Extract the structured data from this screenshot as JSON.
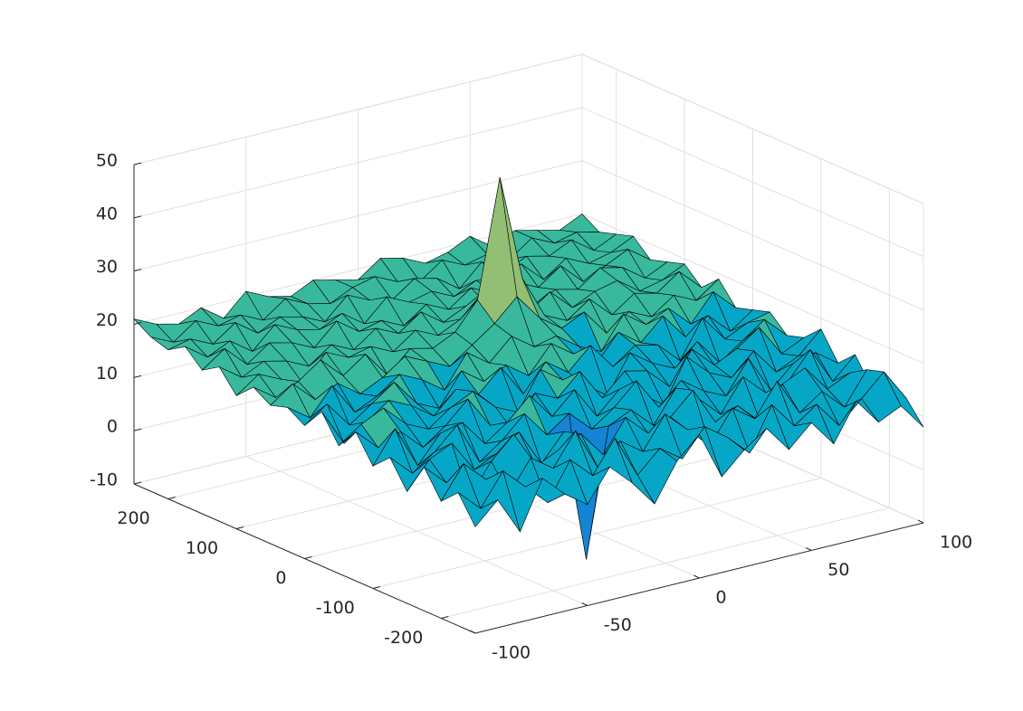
{
  "chart_data": {
    "type": "surface",
    "x": [
      -100,
      -90,
      -80,
      -70,
      -60,
      -50,
      -40,
      -30,
      -20,
      -10,
      0,
      10,
      20,
      30,
      40,
      50,
      60,
      70,
      80,
      90,
      100
    ],
    "y": [
      -250,
      -225,
      -200,
      -175,
      -150,
      -125,
      -100,
      -75,
      -50,
      -25,
      0,
      25,
      50,
      75,
      100,
      125,
      150,
      175,
      200,
      225,
      250
    ],
    "z": [
      [
        10,
        14,
        7,
        16,
        12,
        9,
        15,
        11,
        6,
        13,
        17,
        8,
        12,
        15,
        10,
        14,
        9,
        16,
        11,
        13,
        8
      ],
      [
        15,
        11,
        17,
        13,
        9,
        16,
        12,
        18,
        10,
        14,
        11,
        16,
        13,
        9,
        17,
        12,
        15,
        10,
        14,
        18,
        12
      ],
      [
        12,
        18,
        14,
        10,
        16,
        13,
        19,
        11,
        15,
        12,
        18,
        14,
        10,
        16,
        13,
        19,
        12,
        15,
        11,
        17,
        14
      ],
      [
        17,
        13,
        9,
        15,
        19,
        12,
        14,
        16,
        11,
        17,
        13,
        15,
        19,
        12,
        14,
        10,
        16,
        18,
        13,
        15,
        11
      ],
      [
        11,
        16,
        18,
        12,
        14,
        17,
        10,
        15,
        -10,
        14,
        16,
        12,
        18,
        15,
        11,
        17,
        13,
        14,
        19,
        12,
        16
      ],
      [
        16,
        12,
        15,
        19,
        11,
        14,
        18,
        13,
        16,
        12,
        15,
        19,
        13,
        17,
        14,
        12,
        18,
        11,
        15,
        16,
        13
      ],
      [
        13,
        19,
        11,
        16,
        17,
        12,
        15,
        19,
        14,
        18,
        12,
        16,
        14,
        11,
        19,
        15,
        13,
        17,
        12,
        14,
        18
      ],
      [
        18,
        14,
        16,
        12,
        15,
        19,
        13,
        11,
        17,
        15,
        19,
        13,
        17,
        16,
        12,
        18,
        14,
        16,
        19,
        13,
        15
      ],
      [
        14,
        17,
        19,
        15,
        13,
        16,
        18,
        14,
        12,
        19,
        16,
        14,
        11,
        18,
        15,
        13,
        17,
        12,
        15,
        18,
        14
      ],
      [
        19,
        12,
        15,
        18,
        16,
        13,
        17,
        15,
        19,
        13,
        18,
        15,
        19,
        14,
        17,
        16,
        12,
        19,
        14,
        16,
        17
      ],
      [
        15,
        18,
        13,
        16,
        19,
        14,
        12,
        18,
        15,
        17,
        14,
        19,
        16,
        13,
        18,
        15,
        19,
        14,
        17,
        13,
        16
      ],
      [
        17,
        14,
        19,
        13,
        15,
        18,
        16,
        13,
        19,
        16,
        20,
        17,
        18,
        15,
        13,
        19,
        16,
        18,
        14,
        19,
        15
      ],
      [
        16,
        19,
        15,
        17,
        14,
        16,
        19,
        17,
        15,
        18,
        21,
        25,
        20,
        17,
        19,
        14,
        17,
        15,
        18,
        16,
        19
      ],
      [
        18,
        15,
        17,
        20,
        16,
        19,
        14,
        18,
        17,
        19,
        24,
        46,
        26,
        18,
        16,
        19,
        15,
        18,
        17,
        20,
        16
      ],
      [
        15,
        18,
        16,
        14,
        19,
        17,
        18,
        16,
        19,
        17,
        19,
        23,
        19,
        17,
        20,
        16,
        18,
        19,
        16,
        17,
        19
      ],
      [
        19,
        16,
        18,
        17,
        15,
        18,
        16,
        19,
        17,
        20,
        17,
        19,
        18,
        20,
        16,
        18,
        17,
        20,
        19,
        16,
        18
      ],
      [
        17,
        20,
        16,
        19,
        18,
        16,
        20,
        17,
        18,
        16,
        19,
        17,
        20,
        18,
        19,
        17,
        20,
        16,
        18,
        20,
        17
      ],
      [
        20,
        17,
        19,
        16,
        20,
        18,
        17,
        19,
        16,
        20,
        18,
        19,
        17,
        19,
        18,
        20,
        16,
        19,
        17,
        18,
        20
      ],
      [
        18,
        19,
        17,
        20,
        17,
        19,
        18,
        16,
        20,
        18,
        17,
        20,
        19,
        16,
        20,
        17,
        19,
        18,
        20,
        17,
        19
      ],
      [
        19,
        17,
        20,
        18,
        19,
        17,
        20,
        18,
        17,
        19,
        20,
        18,
        17,
        20,
        18,
        19,
        17,
        20,
        18,
        19,
        18
      ],
      [
        21,
        19,
        18,
        20,
        17,
        21,
        19,
        18,
        20,
        19,
        18,
        21,
        20,
        18,
        19,
        21,
        18,
        20,
        19,
        18,
        20
      ]
    ],
    "xlim": [
      -100,
      100
    ],
    "ylim": [
      -250,
      250
    ],
    "zlim": [
      -10,
      50
    ],
    "xticks": [
      -100,
      -50,
      0,
      50,
      100
    ],
    "yticks": [
      -200,
      -100,
      0,
      100,
      200
    ],
    "zticks": [
      -10,
      0,
      10,
      20,
      30,
      40,
      50
    ],
    "grid": true,
    "colormap": [
      "#352a87",
      "#0363e1",
      "#1485d4",
      "#06a7c6",
      "#38b99e",
      "#92bf73",
      "#d9ba56",
      "#fcce2e",
      "#f9fb0e"
    ],
    "edge_color": "#000000"
  }
}
